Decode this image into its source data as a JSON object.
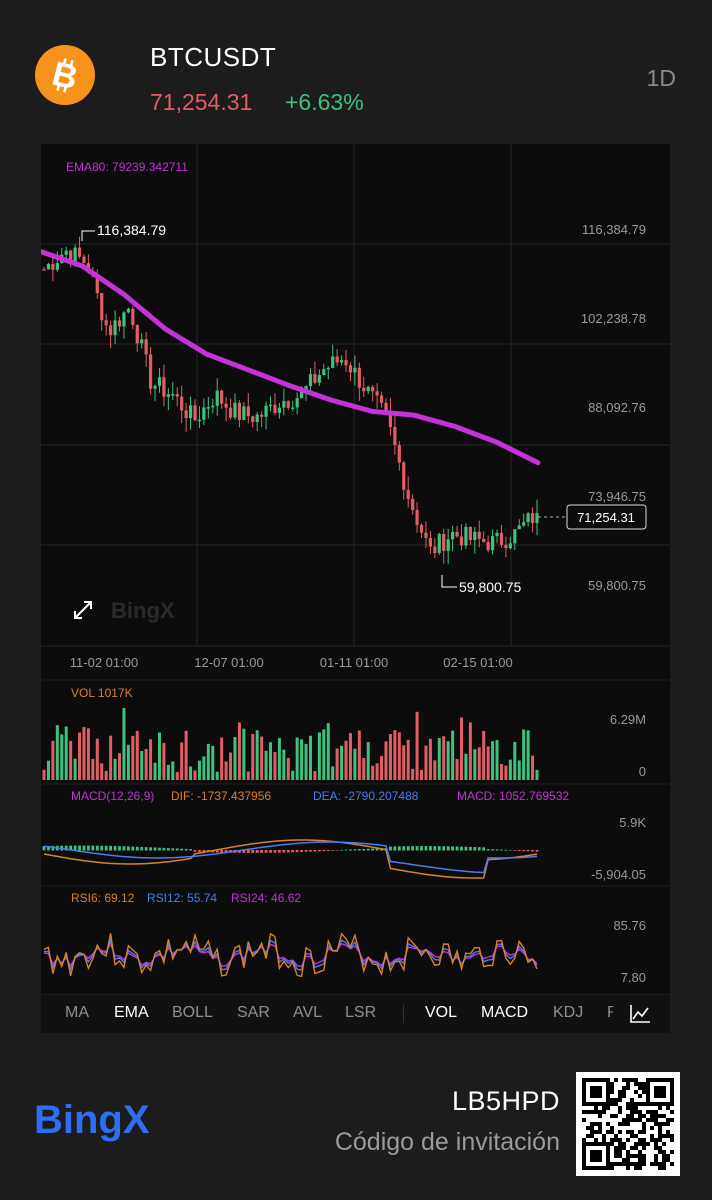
{
  "header": {
    "symbol": "BTCUSDT",
    "price": "71,254.31",
    "change": "+6.63%",
    "timeframe": "1D",
    "coin_icon": "bitcoin-icon"
  },
  "main_chart": {
    "ema_label": "EMA80: 79239.342711",
    "high_label": "116,384.79",
    "low_label": "59,800.75",
    "current_price_tag": "71,254.31",
    "y_ticks": [
      "116,384.79",
      "102,238.78",
      "88,092.76",
      "73,946.75",
      "59,800.75"
    ],
    "x_ticks": [
      "11-02 01:00",
      "12-07 01:00",
      "01-11 01:00",
      "02-15 01:00"
    ],
    "watermark": "BingX",
    "colors": {
      "up": "#3ec27e",
      "down": "#e25e66",
      "ema": "#c432d8"
    }
  },
  "vol": {
    "label": "VOL 1017K",
    "ticks": [
      "6.29M",
      "0"
    ]
  },
  "macd": {
    "title": "MACD(12,26,9)",
    "dif": "DIF: -1737.437956",
    "dea": "DEA: -2790.207488",
    "macd": "MACD: 1052.769532",
    "ticks": [
      "5.9K",
      "-5,904.05"
    ]
  },
  "rsi": {
    "rsi6": "RSI6: 69.12",
    "rsi12": "RSI12: 55.74",
    "rsi24": "RSI24: 46.62",
    "ticks": [
      "85.76",
      "7.80"
    ]
  },
  "tabs": {
    "left": [
      "MA",
      "EMA",
      "BOLL",
      "SAR",
      "AVL",
      "LSR"
    ],
    "right": [
      "VOL",
      "MACD",
      "KDJ",
      "R"
    ],
    "active": [
      "EMA",
      "VOL",
      "MACD"
    ],
    "chart_icon": "line-chart-icon"
  },
  "footer": {
    "logo": "BingX",
    "code": "LB5HPD",
    "invite_label": "Código de invitación",
    "qr_icon": "qr-code-icon"
  },
  "chart_data": [
    {
      "type": "candlestick",
      "title": "EMA80: 79239.342711",
      "x_ticks": [
        "11-02 01:00",
        "12-07 01:00",
        "01-11 01:00",
        "02-15 01:00"
      ],
      "y_ticks": [
        116384.79,
        102238.78,
        88092.76,
        73946.75,
        59800.75
      ],
      "ylim": [
        59800.75,
        116384.79
      ],
      "annotations": {
        "high": 116384.79,
        "low": 59800.75,
        "last": 71254.31
      },
      "ema80": [
        112800,
        110500,
        106000,
        100500,
        96500,
        94000,
        91500,
        89200,
        87400,
        86800,
        85000,
        82500,
        79239
      ],
      "close_trend": [
        110000,
        113000,
        111000,
        100000,
        104000,
        92000,
        90000,
        86000,
        90000,
        87000,
        86500,
        89000,
        90000,
        94000,
        96000,
        91000,
        86000,
        74000,
        65000,
        68000,
        67000,
        66500,
        68000,
        71254
      ]
    },
    {
      "type": "bar",
      "title": "VOL 1017K",
      "ylim": [
        0,
        6290000
      ]
    },
    {
      "type": "line",
      "title": "MACD(12,26,9)",
      "series": [
        {
          "name": "DIF",
          "values": [
            -1737.437956
          ]
        },
        {
          "name": "DEA",
          "values": [
            -2790.207488
          ]
        },
        {
          "name": "MACD",
          "values": [
            1052.769532
          ]
        }
      ],
      "ylim": [
        -5904.05,
        5900
      ]
    },
    {
      "type": "line",
      "title": "RSI",
      "series": [
        {
          "name": "RSI6",
          "values": [
            69.12
          ]
        },
        {
          "name": "RSI12",
          "values": [
            55.74
          ]
        },
        {
          "name": "RSI24",
          "values": [
            46.62
          ]
        }
      ],
      "ylim": [
        7.8,
        85.76
      ]
    }
  ]
}
